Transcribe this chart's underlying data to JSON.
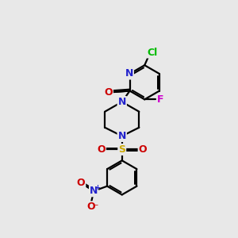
{
  "background_color": "#e8e8e8",
  "atom_colors": {
    "C": "#000000",
    "N": "#2222cc",
    "O": "#cc0000",
    "F": "#cc00cc",
    "Cl": "#00bb00",
    "S": "#ccaa00"
  },
  "figsize": [
    3.0,
    3.0
  ],
  "dpi": 100
}
